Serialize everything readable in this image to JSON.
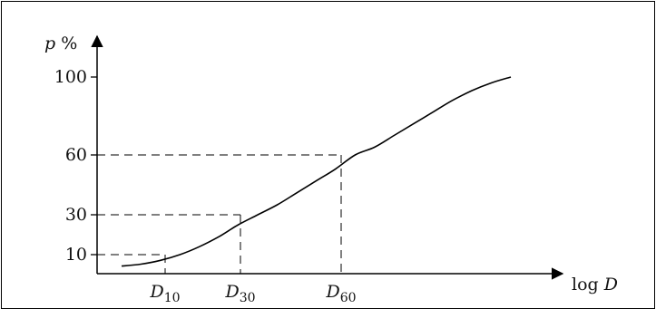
{
  "chart_data": {
    "type": "line",
    "title": "",
    "ylabel": "p %",
    "xlabel": "log D",
    "y_ticks": [
      "100",
      "60",
      "30",
      "10"
    ],
    "y_tick_values": [
      100,
      60,
      30,
      10
    ],
    "x_ticks": [
      {
        "sym": "D",
        "sub": "10",
        "p": 10
      },
      {
        "sym": "D",
        "sub": "30",
        "p": 30
      },
      {
        "sym": "D",
        "sub": "60",
        "p": 60
      }
    ],
    "curve_p": [
      4,
      5,
      7,
      10,
      14,
      19,
      25,
      30,
      35,
      41,
      47,
      53,
      60,
      64,
      70,
      76,
      82,
      88,
      93,
      97,
      100
    ],
    "guides": [
      10,
      30,
      60
    ],
    "ylim": [
      0,
      100
    ],
    "grid": false,
    "line_color": "#000000",
    "guide_style": "dashed"
  }
}
